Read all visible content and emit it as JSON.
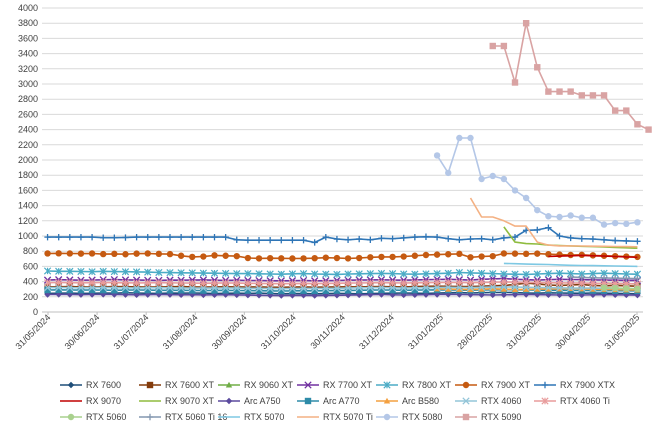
{
  "chart_data": {
    "type": "line",
    "title": "",
    "xlabel": "",
    "ylabel": "",
    "ylim": [
      0,
      4000
    ],
    "y_ticks": [
      0,
      200,
      400,
      600,
      800,
      1000,
      1200,
      1400,
      1600,
      1800,
      2000,
      2200,
      2400,
      2600,
      2800,
      3000,
      3200,
      3400,
      3600,
      3800,
      4000
    ],
    "grid": "horizontal",
    "legend_position": "bottom",
    "x_tick_labels": [
      "31/05/2024",
      "30/06/2024",
      "31/07/2024",
      "31/08/2024",
      "30/09/2024",
      "31/10/2024",
      "30/11/2024",
      "31/12/2024",
      "31/01/2025",
      "28/02/2025",
      "31/03/2025",
      "30/04/2025",
      "31/05/2025"
    ],
    "x_count": 54,
    "series": [
      {
        "name": "RX 7600",
        "color": "#1F4E79",
        "marker": "diamond",
        "start": 0,
        "values": [
          245,
          248,
          250,
          245,
          246,
          250,
          248,
          252,
          250,
          246,
          245,
          249,
          248,
          250,
          247,
          244,
          246,
          248,
          245,
          247,
          243,
          240,
          242,
          244,
          240,
          242,
          245,
          243,
          240,
          244,
          246,
          248,
          250,
          247,
          245,
          250,
          252,
          255,
          250,
          254,
          256,
          258,
          255,
          250,
          248,
          252,
          250,
          248,
          246,
          250,
          248,
          245,
          243,
          240
        ]
      },
      {
        "name": "RX 7600 XT",
        "color": "#843C0C",
        "marker": "square",
        "start": 0,
        "values": [
          330,
          332,
          335,
          330,
          328,
          332,
          335,
          333,
          330,
          328,
          330,
          332,
          335,
          330,
          328,
          330,
          332,
          330,
          328,
          330,
          326,
          325,
          328,
          330,
          326,
          328,
          330,
          332,
          330,
          333,
          335,
          332,
          330,
          335,
          338,
          340,
          338,
          336,
          335,
          340,
          345,
          350,
          360,
          380,
          370,
          355,
          350,
          355,
          360,
          350,
          345,
          350,
          345,
          340
        ]
      },
      {
        "name": "RX 9060 XT",
        "color": "#70AD47",
        "marker": "triangle",
        "start": 50,
        "values": [
          380,
          375,
          372,
          370
        ]
      },
      {
        "name": "RX 7700 XT",
        "color": "#7030A0",
        "marker": "x",
        "start": 0,
        "values": [
          420,
          425,
          422,
          418,
          420,
          424,
          426,
          422,
          420,
          418,
          416,
          420,
          418,
          420,
          422,
          418,
          416,
          418,
          415,
          414,
          412,
          410,
          412,
          414,
          410,
          412,
          415,
          418,
          420,
          422,
          424,
          420,
          418,
          422,
          425,
          428,
          430,
          425,
          420,
          430,
          435,
          440,
          430,
          425,
          420,
          425,
          430,
          428,
          425,
          422,
          420,
          418,
          416,
          415
        ]
      },
      {
        "name": "RX 7800 XT",
        "color": "#4BACC6",
        "marker": "asterisk",
        "start": 0,
        "values": [
          540,
          536,
          535,
          533,
          530,
          535,
          532,
          530,
          528,
          525,
          520,
          518,
          516,
          515,
          512,
          510,
          508,
          505,
          505,
          503,
          500,
          498,
          502,
          505,
          500,
          498,
          495,
          500,
          502,
          505,
          508,
          505,
          500,
          498,
          502,
          505,
          510,
          520,
          515,
          510,
          505,
          500,
          498,
          495,
          500,
          505,
          510,
          505,
          500,
          505,
          510,
          505,
          500,
          498
        ]
      },
      {
        "name": "RX 7900 XT",
        "color": "#C55A11",
        "marker": "circle",
        "start": 0,
        "values": [
          770,
          772,
          770,
          768,
          770,
          762,
          765,
          760,
          768,
          770,
          765,
          762,
          740,
          725,
          730,
          745,
          740,
          735,
          710,
          705,
          708,
          706,
          704,
          705,
          708,
          715,
          710,
          705,
          710,
          720,
          725,
          725,
          730,
          740,
          750,
          755,
          760,
          765,
          720,
          730,
          735,
          770,
          768,
          765,
          768,
          760,
          755,
          750,
          752,
          745,
          740,
          735,
          730,
          725
        ]
      },
      {
        "name": "RX 7900 XTX",
        "color": "#2E75B6",
        "marker": "plus",
        "start": 0,
        "values": [
          985,
          985,
          985,
          985,
          985,
          978,
          978,
          980,
          985,
          985,
          985,
          985,
          985,
          985,
          985,
          985,
          985,
          950,
          945,
          945,
          945,
          945,
          945,
          945,
          915,
          985,
          960,
          950,
          960,
          950,
          970,
          965,
          975,
          985,
          990,
          985,
          965,
          950,
          960,
          965,
          950,
          975,
          985,
          1075,
          1080,
          1110,
          1000,
          975,
          965,
          960,
          950,
          940,
          935,
          930
        ]
      },
      {
        "name": "RX 9070",
        "color": "#C00000",
        "marker": "none",
        "start": 45,
        "values": [
          730,
          735,
          740,
          745,
          740,
          735,
          730,
          725,
          720
        ]
      },
      {
        "name": "RX 9070 XT",
        "color": "#8FBC3F",
        "marker": "none",
        "start": 41,
        "values": [
          1120,
          920,
          900,
          895,
          880,
          875,
          870,
          865,
          860,
          855,
          850,
          845,
          840
        ]
      },
      {
        "name": "Arc A750",
        "color": "#5B4A9E",
        "marker": "diamond",
        "start": 0,
        "values": [
          230,
          232,
          230,
          228,
          230,
          232,
          230,
          228,
          226,
          228,
          230,
          228,
          226,
          228,
          225,
          226,
          228,
          225,
          222,
          220,
          218,
          216,
          218,
          220,
          216,
          218,
          220,
          222,
          225,
          228,
          230,
          226,
          224,
          226,
          228,
          230,
          232,
          230,
          228,
          226,
          224,
          226,
          228,
          230,
          228,
          226,
          224,
          222,
          224,
          226,
          228,
          226,
          224,
          222
        ]
      },
      {
        "name": "Arc A770",
        "color": "#2E8BA8",
        "marker": "square",
        "start": 0,
        "values": [
          290,
          292,
          290,
          288,
          290,
          288,
          286,
          288,
          290,
          288,
          286,
          285,
          286,
          284,
          282,
          284,
          285,
          283,
          282,
          280,
          278,
          276,
          278,
          280,
          278,
          280,
          282,
          284,
          286,
          288,
          290,
          288,
          286,
          288,
          290,
          292,
          290,
          288,
          286,
          290,
          292,
          294,
          292,
          290,
          288,
          286,
          285,
          284,
          283,
          282,
          281,
          280,
          279,
          278
        ]
      },
      {
        "name": "Arc B580",
        "color": "#F4A040",
        "marker": "triangle",
        "start": 35,
        "values": [
          305,
          300,
          298,
          295,
          300,
          305,
          300,
          295,
          298,
          300,
          302,
          305,
          310,
          305,
          300,
          298,
          295,
          292,
          290
        ]
      },
      {
        "name": "RTX 4060",
        "color": "#93C5D8",
        "marker": "x",
        "start": 0,
        "values": [
          320,
          322,
          320,
          318,
          320,
          322,
          320,
          318,
          316,
          318,
          320,
          318,
          316,
          315,
          314,
          315,
          316,
          314,
          312,
          310,
          308,
          306,
          308,
          310,
          308,
          310,
          312,
          315,
          318,
          320,
          322,
          318,
          316,
          318,
          320,
          322,
          325,
          322,
          320,
          325,
          328,
          330,
          328,
          325,
          322,
          320,
          318,
          316,
          315,
          314,
          312,
          310,
          308,
          306
        ]
      },
      {
        "name": "RTX 4060 Ti",
        "color": "#E89C9C",
        "marker": "asterisk",
        "start": 0,
        "values": [
          385,
          388,
          386,
          384,
          386,
          388,
          386,
          384,
          382,
          384,
          386,
          384,
          382,
          380,
          378,
          380,
          382,
          380,
          378,
          376,
          374,
          372,
          374,
          376,
          374,
          376,
          378,
          380,
          382,
          384,
          386,
          384,
          382,
          384,
          386,
          388,
          390,
          388,
          386,
          390,
          392,
          395,
          392,
          390,
          388,
          386,
          384,
          382,
          380,
          378,
          376,
          374,
          372,
          370
        ]
      },
      {
        "name": "RTX 5060",
        "color": "#A9D18E",
        "marker": "circle",
        "start": 50,
        "values": [
          320,
          315,
          310,
          305
        ]
      },
      {
        "name": "RTX 5060 Ti 16",
        "color": "#8497B0",
        "marker": "plus",
        "start": 47,
        "values": [
          460,
          455,
          450,
          448,
          445,
          442,
          440
        ]
      },
      {
        "name": "RTX 5070",
        "color": "#7EC8E3",
        "marker": "none",
        "start": 41,
        "values": [
          640,
          635,
          630,
          628,
          625,
          620,
          615,
          612,
          610,
          608,
          605,
          602,
          600
        ]
      },
      {
        "name": "RTX 5070 Ti",
        "color": "#F4B183",
        "marker": "none",
        "start": 38,
        "values": [
          1500,
          1250,
          1250,
          1200,
          1130,
          1130,
          920,
          880,
          870,
          870,
          868,
          866,
          864,
          862,
          860,
          858
        ]
      },
      {
        "name": "RTX 5080",
        "color": "#B4C7E7",
        "marker": "circle",
        "start": 35,
        "values": [
          2060,
          1830,
          2290,
          2290,
          1750,
          1790,
          1750,
          1600,
          1500,
          1340,
          1260,
          1250,
          1270,
          1240,
          1240,
          1150,
          1170,
          1160,
          1180
        ]
      },
      {
        "name": "RTX 5090",
        "color": "#D9A3A3",
        "marker": "square",
        "start": 40,
        "values": [
          3500,
          3500,
          3020,
          3800,
          3220,
          2900,
          2900,
          2900,
          2850,
          2850,
          2850,
          2650,
          2650,
          2470,
          2400
        ]
      }
    ]
  }
}
